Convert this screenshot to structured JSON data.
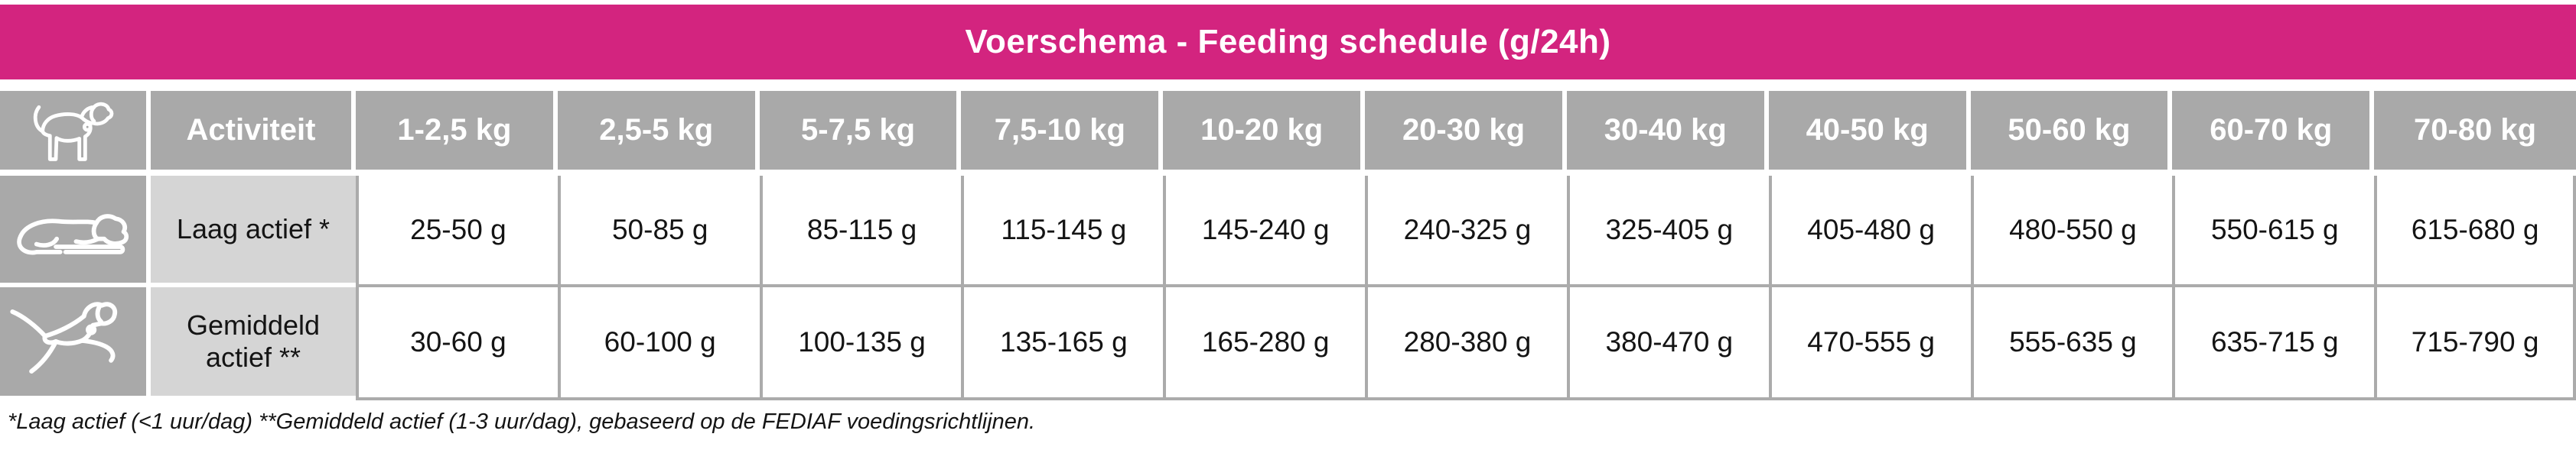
{
  "title": "Voerschema - Feeding schedule (g/24h)",
  "colors": {
    "accent_pink": "#D3247F",
    "header_gray": "#A9A9A9",
    "label_gray": "#D5D5D5",
    "grid_line_gray": "#ABABAB"
  },
  "table": {
    "corner_icon": "dog-standing-icon",
    "col_headers": [
      "Activiteit",
      "1-2,5 kg",
      "2,5-5 kg",
      "5-7,5 kg",
      "7,5-10 kg",
      "10-20 kg",
      "20-30 kg",
      "30-40 kg",
      "40-50 kg",
      "50-60 kg",
      "60-70 kg",
      "70-80 kg"
    ],
    "rows": [
      {
        "icon": "dog-lying-icon",
        "label": "Laag actief *",
        "values": [
          "25-50 g",
          "50-85 g",
          "85-115 g",
          "115-145 g",
          "145-240 g",
          "240-325 g",
          "325-405 g",
          "405-480 g",
          "480-550 g",
          "550-615 g",
          "615-680 g"
        ]
      },
      {
        "icon": "dog-running-icon",
        "label": "Gemiddeld actief **",
        "values": [
          "30-60 g",
          "60-100 g",
          "100-135 g",
          "135-165 g",
          "165-280 g",
          "280-380 g",
          "380-470 g",
          "470-555 g",
          "555-635 g",
          "635-715 g",
          "715-790 g"
        ]
      }
    ]
  },
  "footnote": "*Laag actief (<1 uur/dag)  **Gemiddeld actief (1-3 uur/dag), gebaseerd op de FEDIAF voedingsrichtlijnen."
}
